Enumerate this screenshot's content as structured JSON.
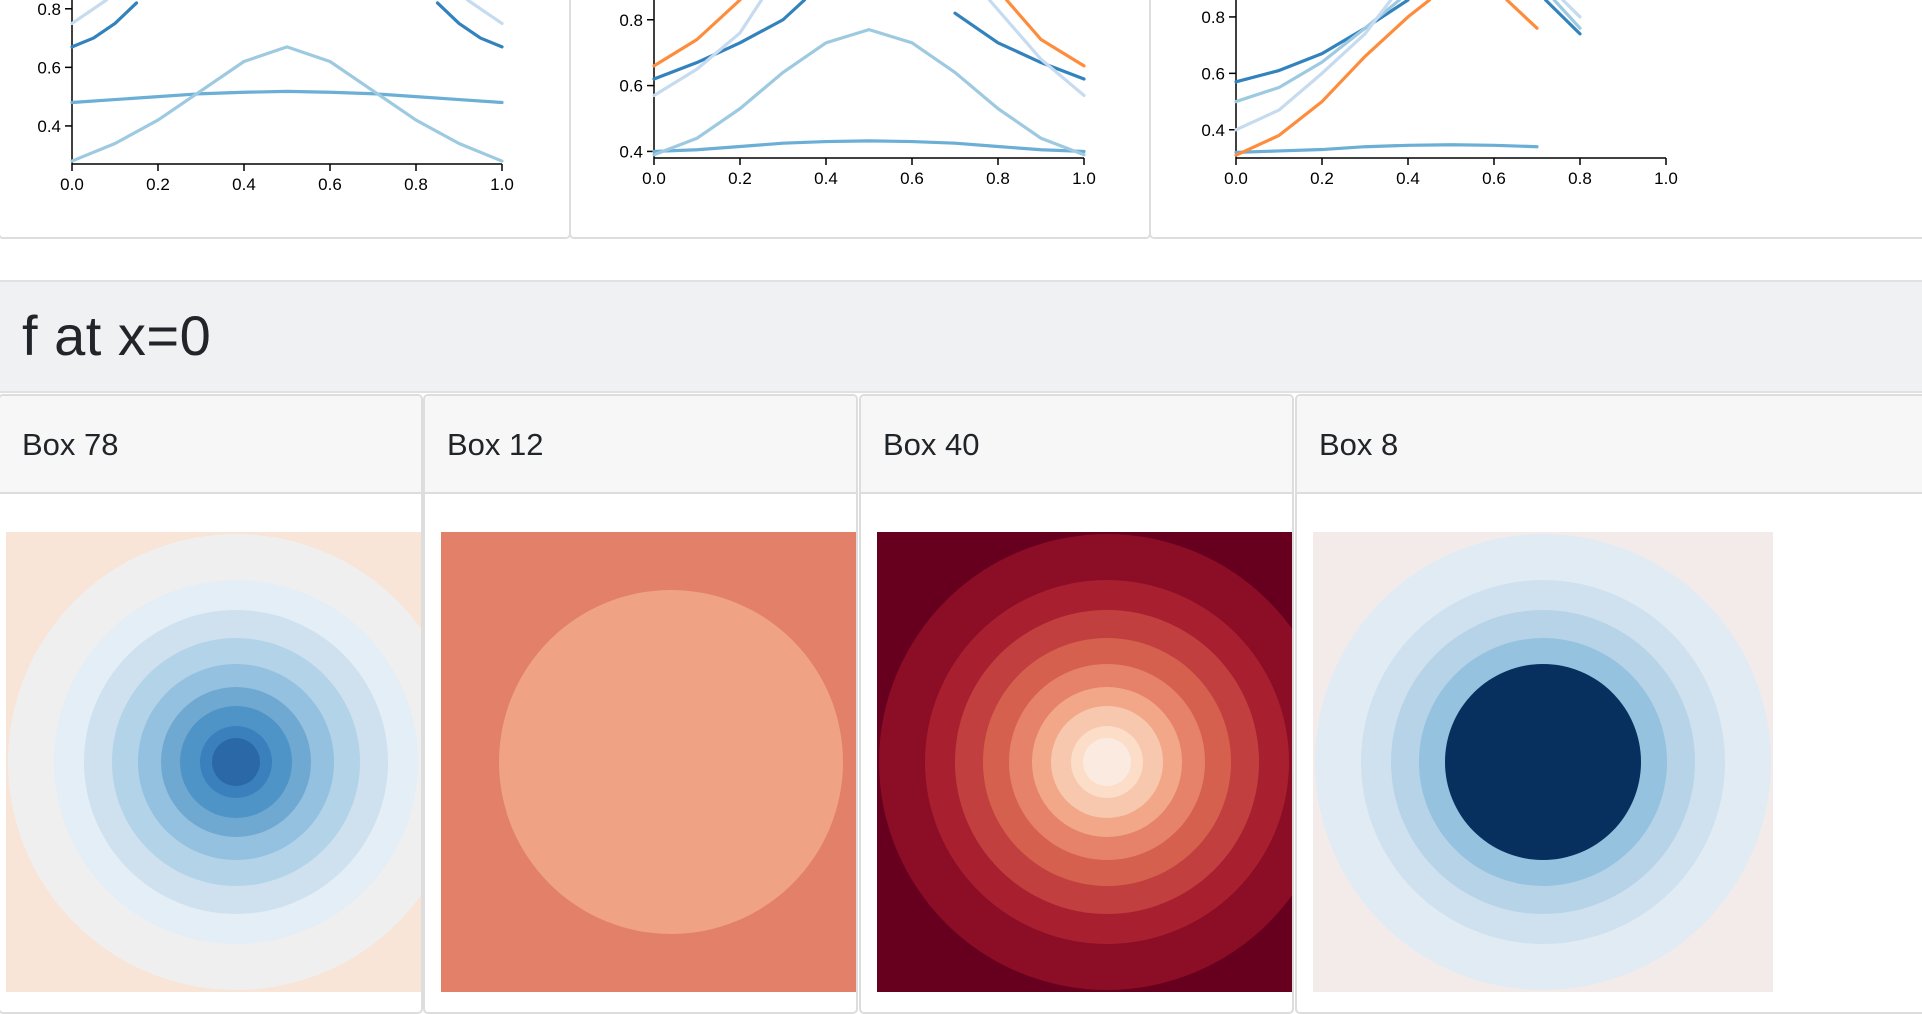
{
  "line_charts": {
    "x_ticks": [
      "0.0",
      "0.2",
      "0.4",
      "0.6",
      "0.8",
      "1.0"
    ],
    "colors": {
      "dark_blue": "#3182bd",
      "mid_blue": "#6baed6",
      "light_blue": "#9ecae1",
      "pale_blue": "#c6dbef",
      "orange": "#fd8d3c"
    },
    "panels": [
      {
        "y_ticks": [
          "0.4",
          "0.6"
        ],
        "partial_top_tick": "0.8",
        "ylim": [
          0.27,
          0.83
        ],
        "series": [
          {
            "color": "mid_blue",
            "x": [
              0,
              0.1,
              0.2,
              0.3,
              0.4,
              0.5,
              0.6,
              0.7,
              0.8,
              0.9,
              1.0
            ],
            "y": [
              0.48,
              0.49,
              0.5,
              0.51,
              0.515,
              0.518,
              0.515,
              0.51,
              0.5,
              0.49,
              0.48
            ]
          },
          {
            "color": "light_blue",
            "x": [
              0,
              0.1,
              0.2,
              0.3,
              0.4,
              0.5,
              0.6,
              0.7,
              0.8,
              0.9,
              1.0
            ],
            "y": [
              0.28,
              0.34,
              0.42,
              0.52,
              0.62,
              0.67,
              0.62,
              0.52,
              0.42,
              0.34,
              0.28
            ]
          },
          {
            "color": "dark_blue",
            "x": [
              0,
              0.05,
              0.1,
              0.15
            ],
            "y": [
              0.67,
              0.7,
              0.75,
              0.82
            ]
          },
          {
            "color": "dark_blue",
            "x": [
              0.85,
              0.9,
              0.95,
              1.0
            ],
            "y": [
              0.82,
              0.75,
              0.7,
              0.67
            ]
          },
          {
            "color": "pale_blue",
            "x": [
              0,
              0.03,
              0.08
            ],
            "y": [
              0.75,
              0.78,
              0.83
            ]
          },
          {
            "color": "pale_blue",
            "x": [
              0.92,
              0.97,
              1.0
            ],
            "y": [
              0.83,
              0.78,
              0.75
            ]
          }
        ]
      },
      {
        "y_ticks": [
          "0.4",
          "0.6",
          "0.8"
        ],
        "ylim": [
          0.38,
          0.86
        ],
        "series": [
          {
            "color": "mid_blue",
            "x": [
              0,
              0.1,
              0.2,
              0.3,
              0.4,
              0.5,
              0.6,
              0.7,
              0.8,
              0.9,
              1.0
            ],
            "y": [
              0.4,
              0.405,
              0.415,
              0.425,
              0.43,
              0.432,
              0.43,
              0.425,
              0.415,
              0.405,
              0.4
            ]
          },
          {
            "color": "light_blue",
            "x": [
              0,
              0.1,
              0.2,
              0.3,
              0.4,
              0.5,
              0.6,
              0.7,
              0.8,
              0.9,
              1.0
            ],
            "y": [
              0.39,
              0.44,
              0.53,
              0.64,
              0.73,
              0.77,
              0.73,
              0.64,
              0.53,
              0.44,
              0.39
            ]
          },
          {
            "color": "dark_blue",
            "x": [
              0,
              0.1,
              0.2,
              0.3,
              0.35
            ],
            "y": [
              0.62,
              0.67,
              0.73,
              0.8,
              0.86
            ]
          },
          {
            "color": "dark_blue",
            "x": [
              0.7,
              0.8,
              0.9,
              1.0
            ],
            "y": [
              0.82,
              0.73,
              0.67,
              0.62
            ]
          },
          {
            "color": "orange",
            "x": [
              0,
              0.1,
              0.15,
              0.2
            ],
            "y": [
              0.66,
              0.74,
              0.8,
              0.86
            ]
          },
          {
            "color": "orange",
            "x": [
              0.82,
              0.9,
              1.0
            ],
            "y": [
              0.86,
              0.74,
              0.66
            ]
          },
          {
            "color": "pale_blue",
            "x": [
              0,
              0.1,
              0.2,
              0.25
            ],
            "y": [
              0.57,
              0.65,
              0.76,
              0.86
            ]
          },
          {
            "color": "pale_blue",
            "x": [
              0.78,
              0.9,
              1.0
            ],
            "y": [
              0.86,
              0.68,
              0.57
            ]
          }
        ]
      },
      {
        "y_ticks": [
          "0.4",
          "0.6",
          "0.8"
        ],
        "ylim": [
          0.3,
          0.86
        ],
        "series": [
          {
            "color": "mid_blue",
            "x": [
              0,
              0.1,
              0.2,
              0.3,
              0.4,
              0.5,
              0.6,
              0.7
            ],
            "y": [
              0.32,
              0.325,
              0.33,
              0.34,
              0.345,
              0.347,
              0.345,
              0.34
            ]
          },
          {
            "color": "orange",
            "x": [
              0,
              0.1,
              0.2,
              0.3,
              0.4,
              0.45
            ],
            "y": [
              0.31,
              0.38,
              0.5,
              0.66,
              0.8,
              0.86
            ]
          },
          {
            "color": "orange",
            "x": [
              0.63,
              0.7
            ],
            "y": [
              0.86,
              0.76
            ]
          },
          {
            "color": "dark_blue",
            "x": [
              0,
              0.1,
              0.2,
              0.3,
              0.4
            ],
            "y": [
              0.57,
              0.61,
              0.67,
              0.76,
              0.86
            ]
          },
          {
            "color": "dark_blue",
            "x": [
              0.72,
              0.8
            ],
            "y": [
              0.86,
              0.74
            ]
          },
          {
            "color": "light_blue",
            "x": [
              0,
              0.1,
              0.2,
              0.3,
              0.38
            ],
            "y": [
              0.5,
              0.55,
              0.64,
              0.76,
              0.86
            ]
          },
          {
            "color": "light_blue",
            "x": [
              0.74,
              0.8
            ],
            "y": [
              0.86,
              0.76
            ]
          },
          {
            "color": "pale_blue",
            "x": [
              0,
              0.1,
              0.2,
              0.3,
              0.36
            ],
            "y": [
              0.4,
              0.47,
              0.6,
              0.74,
              0.86
            ]
          },
          {
            "color": "pale_blue",
            "x": [
              0.76,
              0.8
            ],
            "y": [
              0.86,
              0.8
            ]
          }
        ]
      }
    ]
  },
  "section": {
    "title": "f at x=0"
  },
  "boxes": [
    {
      "title": "Box 78",
      "background": "#f9e4d8",
      "rings": [
        "#f0efef",
        "#e3eef6",
        "#cfe1ef",
        "#b3d3e8",
        "#93c1df",
        "#6fa9d2",
        "#4f94c6",
        "#3a80bd"
      ],
      "center": "#2b68a7"
    },
    {
      "title": "Box 12",
      "background": "#e2806a",
      "rings": [
        "#f0a284"
      ],
      "center": "#f0a284"
    },
    {
      "title": "Box 40",
      "background": "#67001f",
      "rings": [
        "#8b0d26",
        "#a8202f",
        "#c1403f",
        "#d6604e",
        "#e6826a",
        "#f2a888",
        "#f8c8ae",
        "#fbddc8"
      ],
      "center": "#fbeae0"
    },
    {
      "title": "Box 8",
      "background": "#f2ebea",
      "rings": [
        "#e1ebf4",
        "#cfe1ef",
        "#b6d3e8",
        "#95c2df",
        "#6ea8d1",
        "#4d8fc2",
        "#2c70ae",
        "#14508d"
      ],
      "center": "#08305e"
    }
  ]
}
